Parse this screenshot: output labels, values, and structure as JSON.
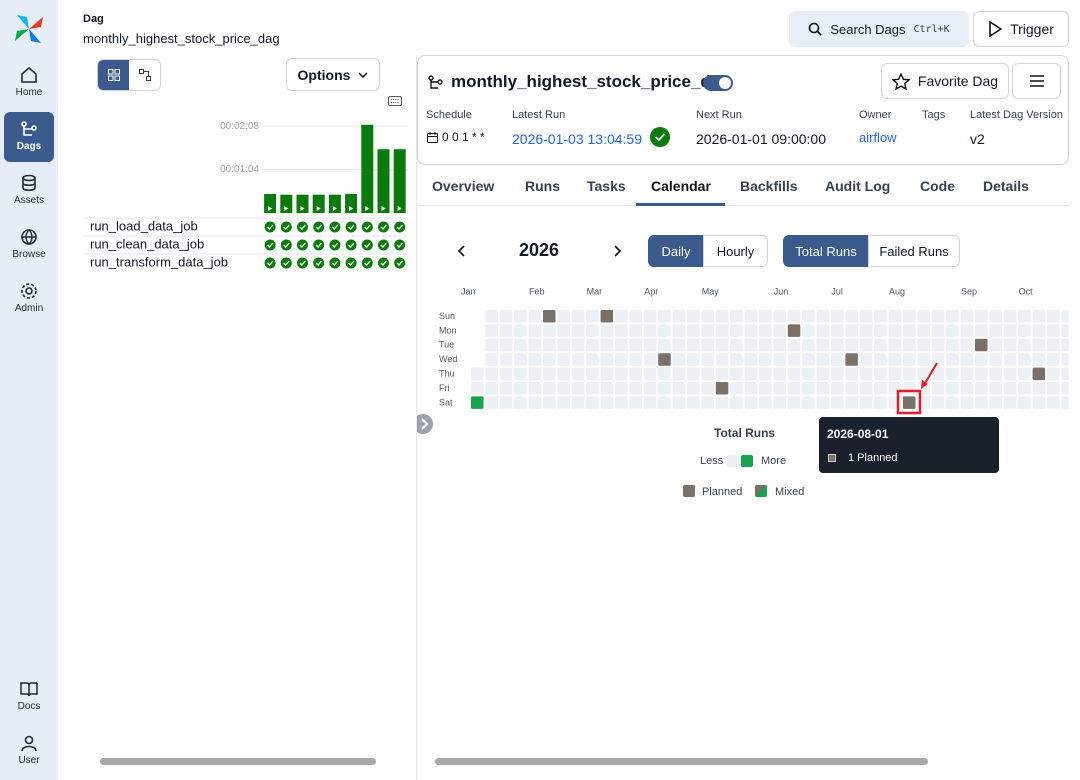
{
  "nav": [
    "Home",
    "Dags",
    "Assets",
    "Browse",
    "Admin",
    "Docs",
    "User"
  ],
  "header": {
    "label": "Dag",
    "dag_id": "monthly_highest_stock_price_dag",
    "search": "Search Dags",
    "shortcut": "Ctrl+K",
    "trigger": "Trigger"
  },
  "options": "Options",
  "chart_data": {
    "type": "bar",
    "categories": [
      null,
      null,
      null,
      null,
      null,
      null,
      null,
      null,
      null
    ],
    "values": [
      28,
      27,
      27,
      27,
      27,
      28,
      130,
      94,
      94
    ],
    "color": "#0a7a0a",
    "ylim": [
      0,
      140
    ],
    "yticks": [
      {
        "value": 64,
        "label": "00:01:04"
      },
      {
        "value": 128,
        "label": "00:02:08"
      }
    ],
    "grid": true
  },
  "tasks": [
    "run_load_data_job",
    "run_clean_data_job",
    "run_transform_data_job"
  ],
  "dag": {
    "title": "monthly_highest_stock_price_dag",
    "favorite": "Favorite Dag",
    "meta": [
      {
        "label": "Schedule",
        "value": "0 0 1 * *"
      },
      {
        "label": "Latest Run",
        "value": "2026-01-03 13:04:59"
      },
      {
        "label": "Next Run",
        "value": "2026-01-01 09:00:00"
      },
      {
        "label": "Owner",
        "value": "airflow"
      },
      {
        "label": "Tags"
      },
      {
        "label": "Latest Dag Version",
        "value": "v2"
      }
    ]
  },
  "tabs": [
    "Overview",
    "Runs",
    "Tasks",
    "Calendar",
    "Backfills",
    "Audit Log",
    "Code",
    "Details"
  ],
  "calendar": {
    "year": 2026,
    "modes": [
      "Daily",
      "Hourly"
    ],
    "metrics": [
      "Total Runs",
      "Failed Runs"
    ],
    "months": [
      "Jan",
      "Feb",
      "Mar",
      "Apr",
      "May",
      "Jun",
      "Jul",
      "Aug",
      "Sep",
      "Oct"
    ],
    "weekdays": [
      "Sun",
      "Mon",
      "Tue",
      "Wed",
      "Thu",
      "Fri",
      "Sat"
    ],
    "success_dates": [
      "2026-01-03"
    ],
    "planned_dates": [
      "2026-02-01",
      "2026-03-01",
      "2026-04-01",
      "2026-05-01",
      "2026-06-01",
      "2026-07-01",
      "2026-08-01",
      "2026-09-01",
      "2026-10-01"
    ],
    "legend": {
      "title": "Total Runs",
      "less": "Less",
      "more": "More",
      "planned": "Planned",
      "mixed": "Mixed"
    },
    "tooltip": {
      "date": "2026-08-01",
      "text": "1 Planned"
    }
  }
}
